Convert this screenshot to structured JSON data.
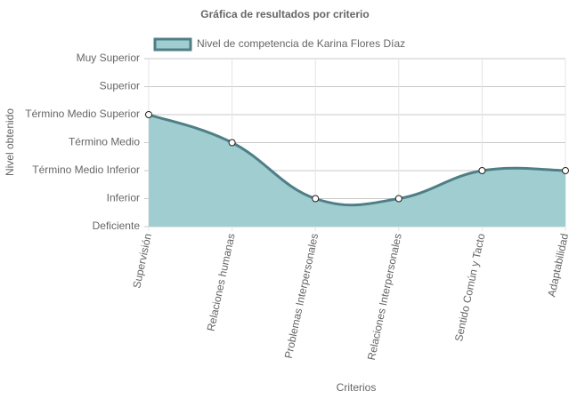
{
  "chart_data": {
    "type": "line",
    "title": "Gráfica de resultados por criterio",
    "x_label": "Criterios",
    "y_label": "Nivel obtenido",
    "categories": [
      "Supervisión",
      "Relaciones humanas",
      "Problemas Interpersonales",
      "Relaciones Interpersonales",
      "Sentido Común y Tacto",
      "Adaptabilidad"
    ],
    "series": [
      {
        "name": "Nivel de competencia de Karina Flores Díaz",
        "color": "#4f7f86",
        "fill": "#a0cdd0",
        "values": [
          4,
          3,
          1,
          1,
          2,
          2
        ]
      }
    ],
    "ylim": [
      0,
      6
    ],
    "yticks": [
      {
        "value": 0,
        "label": "Deficiente"
      },
      {
        "value": 1,
        "label": "Inferior"
      },
      {
        "value": 2,
        "label": "Término Medio Inferior"
      },
      {
        "value": 3,
        "label": "Término Medio"
      },
      {
        "value": 4,
        "label": "Término Medio Superior"
      },
      {
        "value": 5,
        "label": "Superior"
      },
      {
        "value": 6,
        "label": "Muy Superior"
      }
    ],
    "grid": true,
    "legend": "top"
  }
}
